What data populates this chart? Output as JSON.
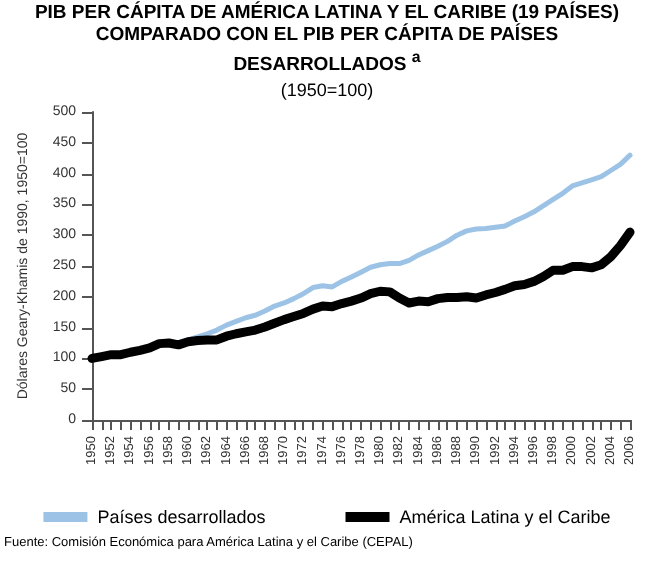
{
  "chart_data": {
    "type": "line",
    "title": "PIB PER CÁPITA DE AMÉRICA LATINA Y EL CARIBE (19 PAÍSES) COMPARADO CON EL PIB PER CÁPITA DE PAÍSES DESARROLLADOS $^{a}$",
    "subtitle": "(1950=100)",
    "ylabel": "Dólares Geary-Khamis de 1990, 1950=100",
    "categories": [
      "1950",
      null,
      "1952",
      null,
      "1954",
      null,
      "1956",
      null,
      "1958",
      null,
      "1960",
      null,
      "1962",
      null,
      "1964",
      null,
      "1966",
      null,
      "1968",
      null,
      "1970",
      null,
      "1972",
      null,
      "1974",
      null,
      "1976",
      null,
      "1978",
      null,
      "1980",
      null,
      "1982",
      null,
      "1984",
      null,
      "1986",
      null,
      "1988",
      null,
      "1990",
      null,
      "1992",
      null,
      "1994",
      null,
      "1996",
      null,
      "1998",
      null,
      "2000",
      null,
      "2002",
      null,
      "2004",
      null,
      "2006"
    ],
    "series": [
      {
        "name": "Países desarrollados",
        "color": "#9cc3e5",
        "values": [
          100,
          103,
          106,
          107,
          110,
          114,
          117,
          122,
          123,
          125,
          130,
          135,
          140,
          146,
          154,
          160,
          166,
          170,
          177,
          185,
          190,
          197,
          205,
          215,
          218,
          216,
          225,
          232,
          240,
          248,
          252,
          254,
          254,
          259,
          268,
          275,
          282,
          290,
          300,
          307,
          310,
          311,
          313,
          315,
          323,
          330,
          338,
          348,
          358,
          368,
          380,
          385,
          390,
          395,
          405,
          415,
          430
        ]
      },
      {
        "name": "América Latina y el Caribe",
        "color": "#000000",
        "values": [
          100,
          103,
          106,
          106,
          110,
          113,
          117,
          124,
          125,
          122,
          127,
          129,
          130,
          130,
          136,
          140,
          143,
          146,
          151,
          157,
          163,
          168,
          173,
          180,
          185,
          184,
          189,
          193,
          198,
          205,
          209,
          208,
          198,
          190,
          193,
          192,
          197,
          199,
          199,
          200,
          198,
          203,
          207,
          212,
          218,
          220,
          225,
          233,
          243,
          243,
          249,
          249,
          247,
          252,
          265,
          283,
          305
        ]
      }
    ],
    "ylim": [
      0,
      500
    ],
    "yticks": [
      0,
      50,
      100,
      150,
      200,
      250,
      300,
      350,
      400,
      450,
      500
    ],
    "grid": false,
    "legend": "bottom",
    "marker": "none",
    "line_style": "solid",
    "annotations": [
      "Fuente: Comisión Económica para América Latina y el Caribe (CEPAL)"
    ]
  }
}
